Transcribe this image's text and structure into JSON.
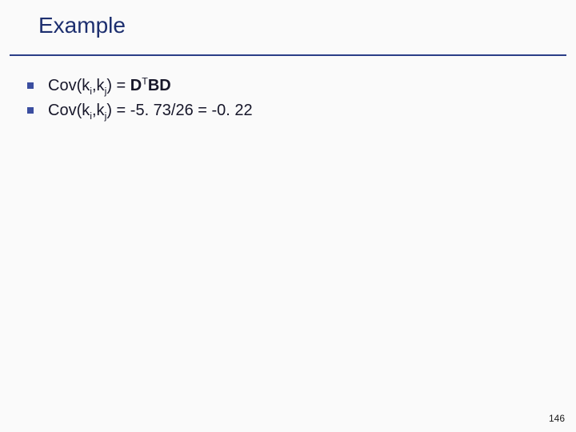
{
  "colors": {
    "background": "#fafafa",
    "title": "#1d2f6f",
    "divider": "#2a3e87",
    "bullet_marker": "#3b4ea0",
    "body_text": "#17172a",
    "page_number": "#1a1a1a"
  },
  "typography": {
    "title_fontsize": 28,
    "body_fontsize": 20,
    "page_number_fontsize": 12,
    "font_family": "Verdana, Geneva, sans-serif"
  },
  "title": "Example",
  "bullets": [
    {
      "type": "formula",
      "prefix": "Cov(k",
      "sub1": "i",
      "mid1": ",k",
      "sub2": "j",
      "mid2": ") = ",
      "bold1": "D",
      "sup": "T",
      "bold2": "BD"
    },
    {
      "type": "formula_value",
      "prefix": "Cov(k",
      "sub1": "i",
      "mid1": ",k",
      "sub2": "j",
      "suffix": ") = -5. 73/26 = -0. 22"
    }
  ],
  "page_number": "146"
}
